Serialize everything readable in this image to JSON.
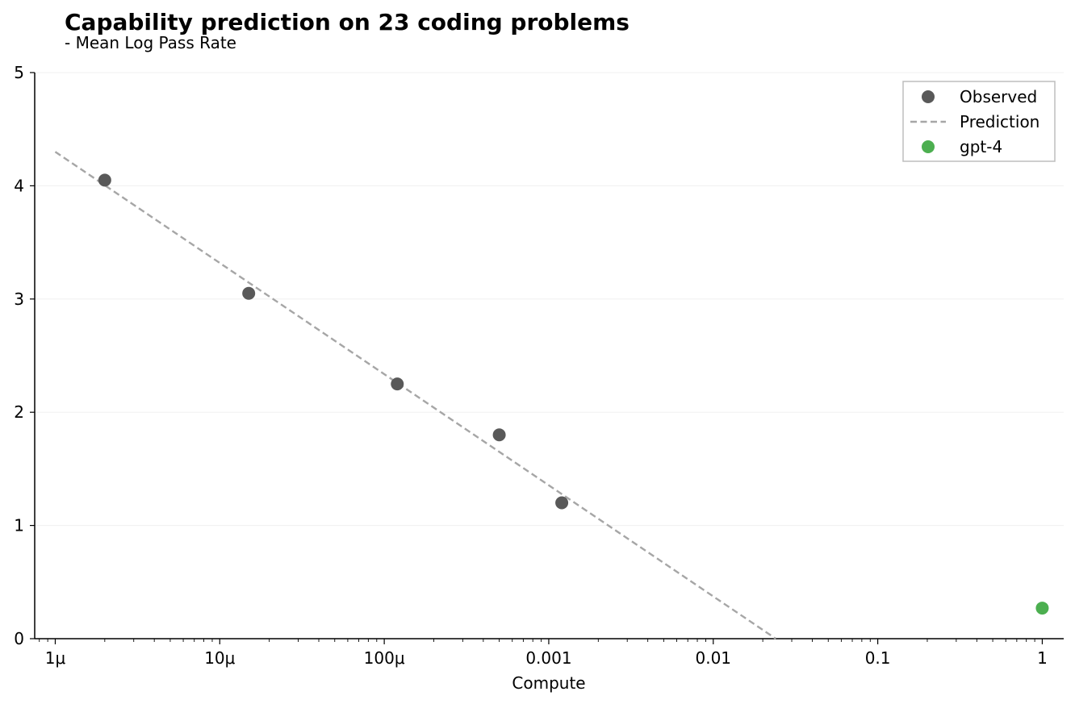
{
  "chart_data": {
    "type": "scatter",
    "title": "Capability prediction on 23 coding problems",
    "subtitle": "- Mean Log Pass Rate",
    "xlabel": "Compute",
    "ylabel": "",
    "x_scale": "log",
    "xlim": [
      7.5e-07,
      1.35
    ],
    "ylim": [
      0,
      5
    ],
    "x_ticks": [
      {
        "value": 1e-06,
        "label": "1μ"
      },
      {
        "value": 1e-05,
        "label": "10μ"
      },
      {
        "value": 0.0001,
        "label": "100μ"
      },
      {
        "value": 0.001,
        "label": "0.001"
      },
      {
        "value": 0.01,
        "label": "0.01"
      },
      {
        "value": 0.1,
        "label": "0.1"
      },
      {
        "value": 1,
        "label": "1"
      }
    ],
    "y_ticks": [
      {
        "value": 0,
        "label": "0"
      },
      {
        "value": 1,
        "label": "1"
      },
      {
        "value": 2,
        "label": "2"
      },
      {
        "value": 3,
        "label": "3"
      },
      {
        "value": 4,
        "label": "4"
      },
      {
        "value": 5,
        "label": "5"
      }
    ],
    "grid": "horizontal",
    "legend_position": "top-right",
    "series": [
      {
        "name": "Observed",
        "kind": "scatter",
        "color": "#595959",
        "points": [
          {
            "x": 2e-06,
            "y": 4.05
          },
          {
            "x": 1.5e-05,
            "y": 3.05
          },
          {
            "x": 0.00012,
            "y": 2.25
          },
          {
            "x": 0.0005,
            "y": 1.8
          },
          {
            "x": 0.0012,
            "y": 1.2
          }
        ]
      },
      {
        "name": "Prediction",
        "kind": "line",
        "style": "dashed",
        "color": "#a6a6a6",
        "points": [
          {
            "x": 1e-06,
            "y": 4.3
          },
          {
            "x": 0.024,
            "y": 0.0
          }
        ]
      },
      {
        "name": "gpt-4",
        "kind": "scatter",
        "color": "#4caf50",
        "points": [
          {
            "x": 1.0,
            "y": 0.27
          }
        ]
      }
    ]
  }
}
